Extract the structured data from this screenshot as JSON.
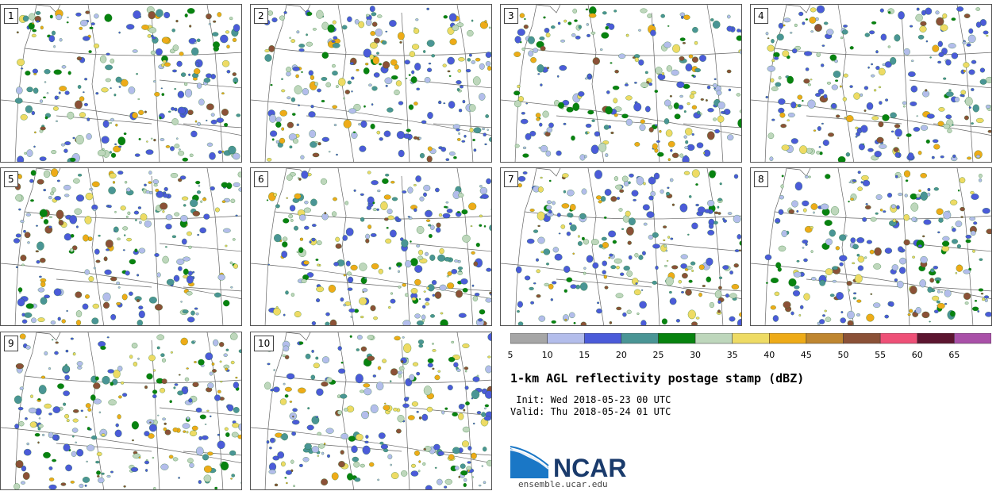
{
  "panels": [
    {
      "label": "1"
    },
    {
      "label": "2"
    },
    {
      "label": "3"
    },
    {
      "label": "4"
    },
    {
      "label": "5"
    },
    {
      "label": "6"
    },
    {
      "label": "7"
    },
    {
      "label": "8"
    },
    {
      "label": "9"
    },
    {
      "label": "10"
    }
  ],
  "colorbar": {
    "colors": [
      "#a6a6a6",
      "#b3bdeb",
      "#4b5bd9",
      "#4a9595",
      "#07830f",
      "#bed7bc",
      "#eedb64",
      "#eeab18",
      "#bf8630",
      "#8b5137",
      "#ee5077",
      "#5c1530",
      "#a950a8"
    ],
    "ticks": [
      "5",
      "10",
      "15",
      "20",
      "25",
      "30",
      "35",
      "40",
      "45",
      "50",
      "55",
      "60",
      "65"
    ]
  },
  "title": "1-km AGL reflectivity postage stamp (dBZ)",
  "init_line": " Init: Wed 2018-05-23 00 UTC",
  "valid_line": "Valid: Thu 2018-05-24 01 UTC",
  "logo": {
    "text": "NCAR",
    "url": "ensemble.ucar.edu"
  }
}
